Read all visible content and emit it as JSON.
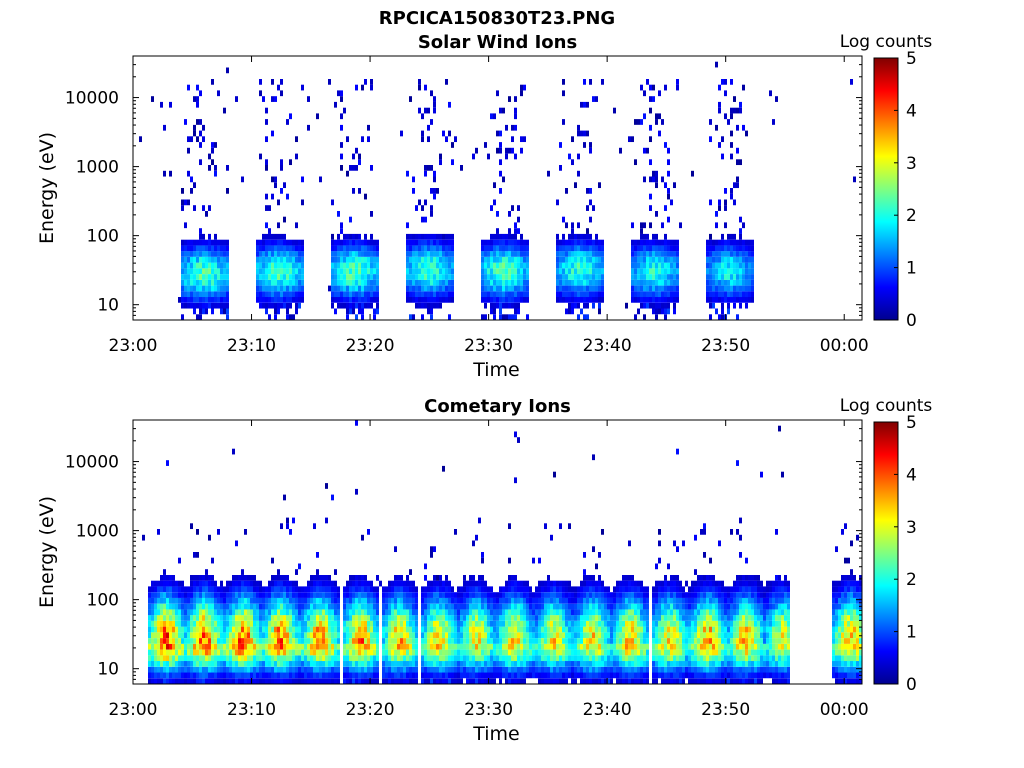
{
  "figure": {
    "title": "RPCICA150830T23.PNG"
  },
  "chart_data": [
    {
      "type": "heatmap",
      "title": "Solar Wind Ions",
      "xlabel": "Time",
      "ylabel": "Energy (eV)",
      "x_tick_labels": [
        "23:00",
        "23:10",
        "23:20",
        "23:30",
        "23:40",
        "23:50",
        "00:00"
      ],
      "x_ticks_minutes": [
        0,
        10,
        20,
        30,
        40,
        50,
        60
      ],
      "xlim_minutes": [
        0,
        61.5
      ],
      "y_scale": "log",
      "ylim": [
        6,
        40000
      ],
      "y_tick_labels": [
        "10",
        "100",
        "1000",
        "10000"
      ],
      "y_ticks": [
        10,
        100,
        1000,
        10000
      ],
      "colorbar": {
        "label": "Log counts",
        "min": 0,
        "max": 5,
        "tick_labels": [
          "0",
          "1",
          "2",
          "3",
          "4",
          "5"
        ]
      },
      "bursts": [
        {
          "center_min": 6.0,
          "peak_log": 2.3,
          "peak_energy_ev": 28
        },
        {
          "center_min": 12.3,
          "peak_log": 2.2,
          "peak_energy_ev": 30
        },
        {
          "center_min": 18.7,
          "peak_log": 2.3,
          "peak_energy_ev": 30
        },
        {
          "center_min": 25.0,
          "peak_log": 2.2,
          "peak_energy_ev": 32
        },
        {
          "center_min": 31.3,
          "peak_log": 2.3,
          "peak_energy_ev": 30
        },
        {
          "center_min": 37.7,
          "peak_log": 2.1,
          "peak_energy_ev": 32
        },
        {
          "center_min": 44.0,
          "peak_log": 2.0,
          "peak_energy_ev": 30
        },
        {
          "center_min": 50.3,
          "peak_log": 1.9,
          "peak_energy_ev": 30
        }
      ],
      "gap_after_min": 55,
      "resume_min": 58.5
    },
    {
      "type": "heatmap",
      "title": "Cometary Ions",
      "xlabel": "Time",
      "ylabel": "Energy (eV)",
      "x_tick_labels": [
        "23:00",
        "23:10",
        "23:20",
        "23:30",
        "23:40",
        "23:50",
        "00:00"
      ],
      "x_ticks_minutes": [
        0,
        10,
        20,
        30,
        40,
        50,
        60
      ],
      "xlim_minutes": [
        0,
        61.5
      ],
      "y_scale": "log",
      "ylim": [
        6,
        40000
      ],
      "y_tick_labels": [
        "10",
        "100",
        "1000",
        "10000"
      ],
      "y_ticks": [
        10,
        100,
        1000,
        10000
      ],
      "colorbar": {
        "label": "Log counts",
        "min": 0,
        "max": 5,
        "tick_labels": [
          "0",
          "1",
          "2",
          "3",
          "4",
          "5"
        ]
      },
      "bursts": [
        {
          "center_min": 2.8,
          "peak_log": 4.0,
          "peak_energy_ev": 25
        },
        {
          "center_min": 6.0,
          "peak_log": 3.9,
          "peak_energy_ev": 25
        },
        {
          "center_min": 9.3,
          "peak_log": 3.9,
          "peak_energy_ev": 25
        },
        {
          "center_min": 12.5,
          "peak_log": 3.8,
          "peak_energy_ev": 25
        },
        {
          "center_min": 15.8,
          "peak_log": 3.7,
          "peak_energy_ev": 25
        },
        {
          "center_min": 19.2,
          "peak_log": 3.7,
          "peak_energy_ev": 25
        },
        {
          "center_min": 22.5,
          "peak_log": 3.4,
          "peak_energy_ev": 25
        },
        {
          "center_min": 25.8,
          "peak_log": 3.3,
          "peak_energy_ev": 25
        },
        {
          "center_min": 29.0,
          "peak_log": 3.2,
          "peak_energy_ev": 25
        },
        {
          "center_min": 32.2,
          "peak_log": 3.3,
          "peak_energy_ev": 25
        },
        {
          "center_min": 35.5,
          "peak_log": 3.2,
          "peak_energy_ev": 25
        },
        {
          "center_min": 38.8,
          "peak_log": 3.3,
          "peak_energy_ev": 25
        },
        {
          "center_min": 42.0,
          "peak_log": 3.4,
          "peak_energy_ev": 25
        },
        {
          "center_min": 45.3,
          "peak_log": 3.3,
          "peak_energy_ev": 25
        },
        {
          "center_min": 48.5,
          "peak_log": 3.6,
          "peak_energy_ev": 25
        },
        {
          "center_min": 51.7,
          "peak_log": 3.4,
          "peak_energy_ev": 25
        },
        {
          "center_min": 54.8,
          "peak_log": 3.1,
          "peak_energy_ev": 25
        },
        {
          "center_min": 60.5,
          "peak_log": 3.5,
          "peak_energy_ev": 25
        }
      ],
      "gap_after_min": 55.5,
      "resume_min": 58.5
    }
  ]
}
